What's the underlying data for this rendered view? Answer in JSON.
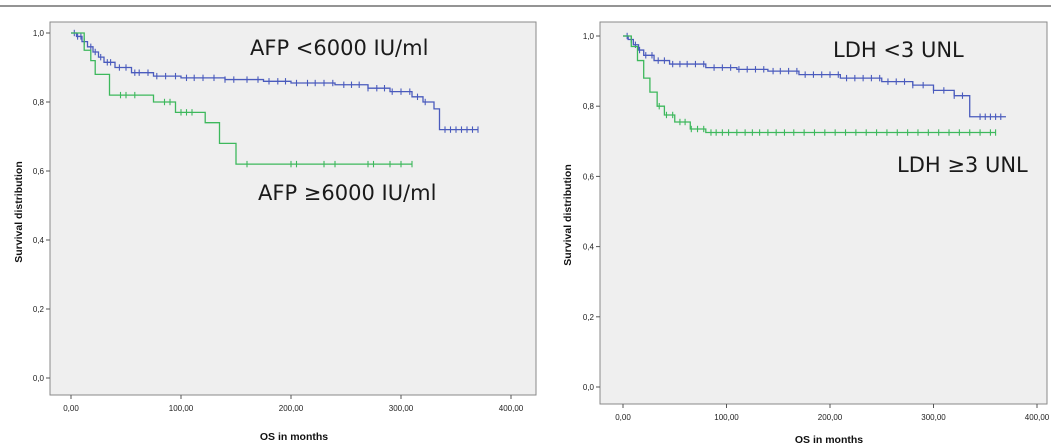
{
  "chart_data": [
    {
      "type": "line",
      "subtype": "kaplan-meier",
      "xlabel": "OS in months",
      "ylabel": "Survival distribution",
      "xlim": [
        0,
        400
      ],
      "ylim": [
        0,
        1
      ],
      "xticks": [
        "0,00",
        "100,00",
        "200,00",
        "300,00",
        "400,00"
      ],
      "yticks": [
        "0,0",
        "0,2",
        "0,4",
        "0,6",
        "0,8",
        "1,0"
      ],
      "grid": false,
      "annotations": [
        "AFP <6000 IU/ml",
        "AFP ≥6000 IU/ml"
      ],
      "series": [
        {
          "color": "#4a5bbd",
          "steps": [
            [
              0,
              1.0
            ],
            [
              5,
              0.99
            ],
            [
              10,
              0.975
            ],
            [
              15,
              0.96
            ],
            [
              20,
              0.945
            ],
            [
              25,
              0.93
            ],
            [
              30,
              0.915
            ],
            [
              40,
              0.9
            ],
            [
              55,
              0.885
            ],
            [
              75,
              0.875
            ],
            [
              100,
              0.87
            ],
            [
              140,
              0.865
            ],
            [
              175,
              0.86
            ],
            [
              200,
              0.855
            ],
            [
              240,
              0.85
            ],
            [
              270,
              0.84
            ],
            [
              290,
              0.83
            ],
            [
              310,
              0.815
            ],
            [
              320,
              0.8
            ],
            [
              330,
              0.78
            ],
            [
              335,
              0.72
            ],
            [
              370,
              0.72
            ]
          ],
          "censors": [
            3,
            6,
            9,
            12,
            18,
            22,
            27,
            33,
            36,
            44,
            50,
            58,
            62,
            70,
            78,
            86,
            95,
            105,
            112,
            120,
            130,
            140,
            148,
            160,
            170,
            180,
            188,
            195,
            205,
            215,
            222,
            230,
            238,
            248,
            255,
            262,
            270,
            278,
            285,
            292,
            300,
            308,
            315,
            322,
            340,
            345,
            350,
            355,
            360,
            365,
            370
          ]
        },
        {
          "color": "#3db85c",
          "steps": [
            [
              0,
              1.0
            ],
            [
              12,
              0.95
            ],
            [
              18,
              0.92
            ],
            [
              22,
              0.88
            ],
            [
              35,
              0.82
            ],
            [
              65,
              0.82
            ],
            [
              75,
              0.8
            ],
            [
              95,
              0.77
            ],
            [
              115,
              0.77
            ],
            [
              122,
              0.74
            ],
            [
              135,
              0.68
            ],
            [
              150,
              0.62
            ],
            [
              310,
              0.62
            ]
          ],
          "censors": [
            45,
            50,
            58,
            85,
            90,
            100,
            105,
            110,
            160,
            200,
            205,
            230,
            240,
            270,
            275,
            290,
            300,
            310
          ]
        }
      ]
    },
    {
      "type": "line",
      "subtype": "kaplan-meier",
      "xlabel": "OS in months",
      "ylabel": "Survival distribution",
      "xlim": [
        0,
        400
      ],
      "ylim": [
        0,
        1
      ],
      "xticks": [
        "0,00",
        "100,00",
        "200,00",
        "300,00",
        "400,00"
      ],
      "yticks": [
        "0,0",
        "0,2",
        "0,4",
        "0,6",
        "0,8",
        "1,0"
      ],
      "grid": false,
      "annotations": [
        "LDH <3 UNL",
        "LDH ≥3 UNL"
      ],
      "series": [
        {
          "color": "#4a5bbd",
          "steps": [
            [
              0,
              1.0
            ],
            [
              5,
              0.99
            ],
            [
              10,
              0.975
            ],
            [
              15,
              0.96
            ],
            [
              20,
              0.945
            ],
            [
              30,
              0.93
            ],
            [
              45,
              0.92
            ],
            [
              80,
              0.91
            ],
            [
              110,
              0.905
            ],
            [
              140,
              0.9
            ],
            [
              170,
              0.89
            ],
            [
              210,
              0.88
            ],
            [
              250,
              0.87
            ],
            [
              280,
              0.86
            ],
            [
              300,
              0.845
            ],
            [
              320,
              0.83
            ],
            [
              335,
              0.77
            ],
            [
              370,
              0.77
            ]
          ],
          "censors": [
            4,
            8,
            12,
            16,
            22,
            28,
            34,
            40,
            48,
            55,
            62,
            70,
            78,
            88,
            96,
            104,
            112,
            120,
            128,
            136,
            145,
            152,
            160,
            168,
            176,
            184,
            192,
            200,
            208,
            216,
            224,
            232,
            240,
            248,
            256,
            264,
            272,
            280,
            290,
            300,
            310,
            320,
            328,
            345,
            350,
            355,
            360,
            365
          ]
        },
        {
          "color": "#3db85c",
          "steps": [
            [
              0,
              1.0
            ],
            [
              8,
              0.97
            ],
            [
              14,
              0.93
            ],
            [
              20,
              0.88
            ],
            [
              26,
              0.84
            ],
            [
              33,
              0.8
            ],
            [
              40,
              0.775
            ],
            [
              50,
              0.755
            ],
            [
              65,
              0.735
            ],
            [
              80,
              0.725
            ],
            [
              360,
              0.725
            ]
          ],
          "censors": [
            35,
            42,
            48,
            55,
            60,
            66,
            72,
            78,
            85,
            90,
            96,
            102,
            110,
            118,
            125,
            132,
            140,
            148,
            156,
            165,
            175,
            185,
            195,
            205,
            215,
            225,
            235,
            245,
            255,
            265,
            275,
            285,
            295,
            305,
            315,
            325,
            335,
            345,
            355,
            360
          ]
        }
      ]
    }
  ]
}
